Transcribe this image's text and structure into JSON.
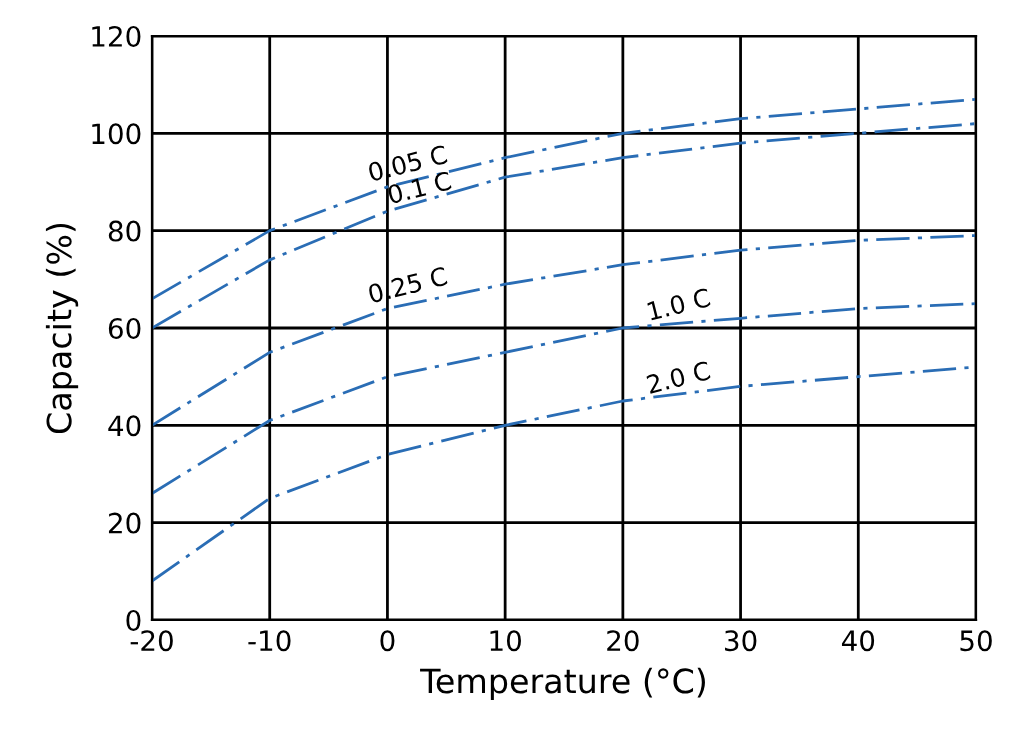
{
  "chart_data": {
    "type": "line",
    "xlabel": "Temperature (°C)",
    "ylabel": "Capacity (%)",
    "x": [
      -20,
      -10,
      0,
      10,
      20,
      30,
      40,
      50
    ],
    "series": [
      {
        "color": "#2a6db5",
        "values": [
          66,
          80,
          89,
          95,
          100,
          103,
          105,
          107
        ]
      },
      {
        "color": "#2a6db5",
        "values": [
          60,
          74,
          84,
          91,
          95,
          98,
          100,
          102
        ]
      },
      {
        "color": "#2a6db5",
        "values": [
          40,
          55,
          64,
          69,
          73,
          76,
          78,
          79
        ]
      },
      {
        "color": "#2a6db5",
        "values": [
          26,
          41,
          50,
          55,
          60,
          62,
          64,
          65
        ]
      },
      {
        "color": "#2a6db5",
        "values": [
          8,
          25,
          34,
          40,
          45,
          48,
          50,
          52
        ]
      }
    ],
    "annotations": [
      {
        "text": "0.05 C",
        "x": 2,
        "y": 91
      },
      {
        "text": "0.1 C",
        "x": 3,
        "y": 86
      },
      {
        "text": "0.25 C",
        "x": 2,
        "y": 66
      },
      {
        "text": "1.0 C",
        "x": 25,
        "y": 62
      },
      {
        "text": "2.0 C",
        "x": 25,
        "y": 47
      }
    ],
    "xlim": [
      -20,
      50
    ],
    "ylim": [
      0,
      120
    ],
    "xticks": [
      -20,
      -10,
      0,
      10,
      20,
      30,
      40,
      50
    ],
    "yticks": [
      0,
      20,
      40,
      60,
      80,
      100,
      120
    ],
    "grid": true,
    "line_style": "dashed",
    "legend": false
  }
}
